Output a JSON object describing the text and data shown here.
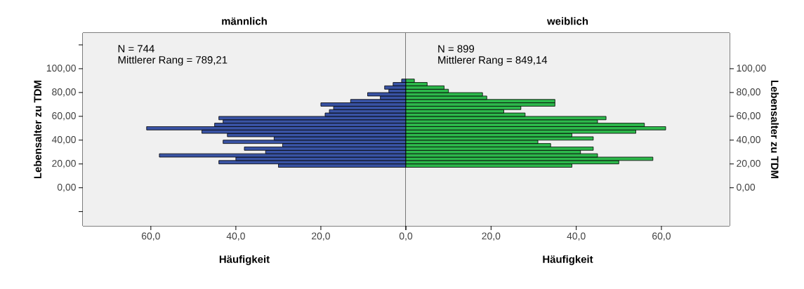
{
  "chart_data": [
    {
      "type": "histogram",
      "orientation": "horizontal",
      "title": "männlich",
      "xlabel": "Häufigkeit",
      "ylabel": "Lebensalter zu TDM",
      "bins": [
        17.2,
        20.05,
        22.9,
        25.75,
        28.6,
        31.45,
        34.3,
        37.15,
        40.0,
        42.85,
        45.7,
        48.55,
        51.4,
        54.25,
        57.1,
        59.95,
        62.8,
        65.65,
        68.5,
        71.35,
        74.2,
        77.05,
        79.9,
        82.75,
        85.6,
        88.45,
        91.3
      ],
      "values": [
        30,
        44,
        40,
        58,
        33,
        38,
        29,
        43,
        31,
        42,
        48,
        61,
        45,
        43,
        44,
        19,
        18,
        17,
        20,
        13,
        6,
        9,
        4,
        5,
        3,
        1
      ],
      "color": "#3953a4",
      "xlim": [
        76,
        0
      ],
      "ylim": [
        -32,
        130
      ],
      "xticks": [
        {
          "value": 60,
          "label": "60,0"
        },
        {
          "value": 40,
          "label": "40,0"
        },
        {
          "value": 20,
          "label": "20,0"
        },
        {
          "value": 0,
          "label": null
        }
      ],
      "yticks": [
        {
          "value": -20,
          "label": null
        },
        {
          "value": 0,
          "label": "0,00"
        },
        {
          "value": 20,
          "label": "20,00"
        },
        {
          "value": 40,
          "label": "40,00"
        },
        {
          "value": 60,
          "label": "60,00"
        },
        {
          "value": 80,
          "label": "80,00"
        },
        {
          "value": 100,
          "label": "100,00"
        },
        {
          "value": 120,
          "label": null
        }
      ],
      "annotations": [
        "N = 744",
        "Mittlerer Rang = 789,21"
      ]
    },
    {
      "type": "histogram",
      "orientation": "horizontal",
      "title": "weiblich",
      "xlabel": "Häufigkeit",
      "ylabel": "Lebensalter zu TDM",
      "bins": [
        17.2,
        20.05,
        22.9,
        25.75,
        28.6,
        31.45,
        34.3,
        37.15,
        40.0,
        42.85,
        45.7,
        48.55,
        51.4,
        54.25,
        57.1,
        59.95,
        62.8,
        65.65,
        68.5,
        71.35,
        74.2,
        77.05,
        79.9,
        82.75,
        85.6,
        88.45,
        91.3
      ],
      "values": [
        39,
        50,
        58,
        45,
        41,
        44,
        34,
        31,
        44,
        39,
        54,
        61,
        56,
        45,
        47,
        28,
        23,
        27,
        35,
        35,
        19,
        18,
        10,
        9,
        5,
        2
      ],
      "color": "#2db84b",
      "xlim": [
        0,
        76
      ],
      "ylim": [
        -32,
        130
      ],
      "xticks": [
        {
          "value": 0,
          "label": "0,0"
        },
        {
          "value": 20,
          "label": "20,0"
        },
        {
          "value": 40,
          "label": "40,0"
        },
        {
          "value": 60,
          "label": "60,0"
        }
      ],
      "yticks": [
        {
          "value": 0,
          "label": "0,00"
        },
        {
          "value": 20,
          "label": "20,00"
        },
        {
          "value": 40,
          "label": "40,00"
        },
        {
          "value": 60,
          "label": "60,00"
        },
        {
          "value": 80,
          "label": "80,00"
        },
        {
          "value": 100,
          "label": "100,00"
        }
      ],
      "annotations": [
        "N = 899",
        "Mittlerer Rang = 849,14"
      ]
    }
  ]
}
